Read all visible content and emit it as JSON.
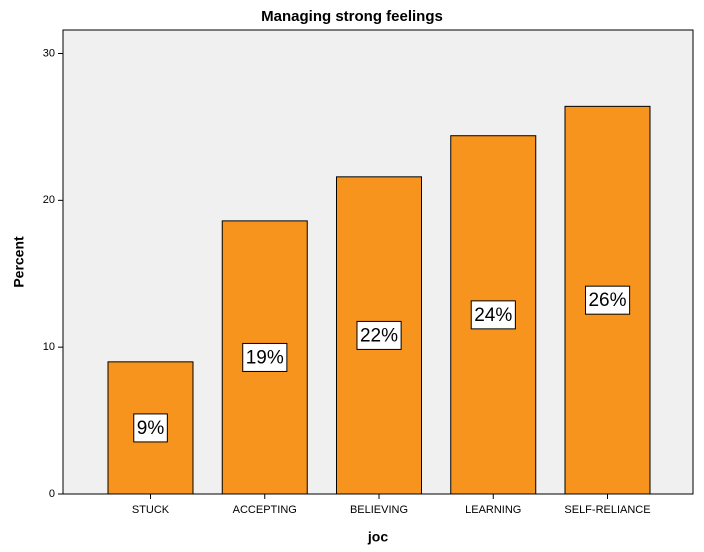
{
  "chart_data": {
    "type": "bar",
    "title": "Managing strong feelings",
    "x_label": "joc",
    "y_label": "Percent",
    "categories": [
      "STUCK",
      "ACCEPTING",
      "BELIEVING",
      "LEARNING",
      "SELF-RELIANCE"
    ],
    "values": [
      9.0,
      18.6,
      21.6,
      24.4,
      26.4
    ],
    "value_labels": [
      "9%",
      "19%",
      "22%",
      "24%",
      "26%"
    ],
    "color": "#f7941d",
    "ylim": [
      0,
      31.6
    ],
    "yticks": [
      0,
      10,
      20,
      30
    ],
    "grid": false
  }
}
